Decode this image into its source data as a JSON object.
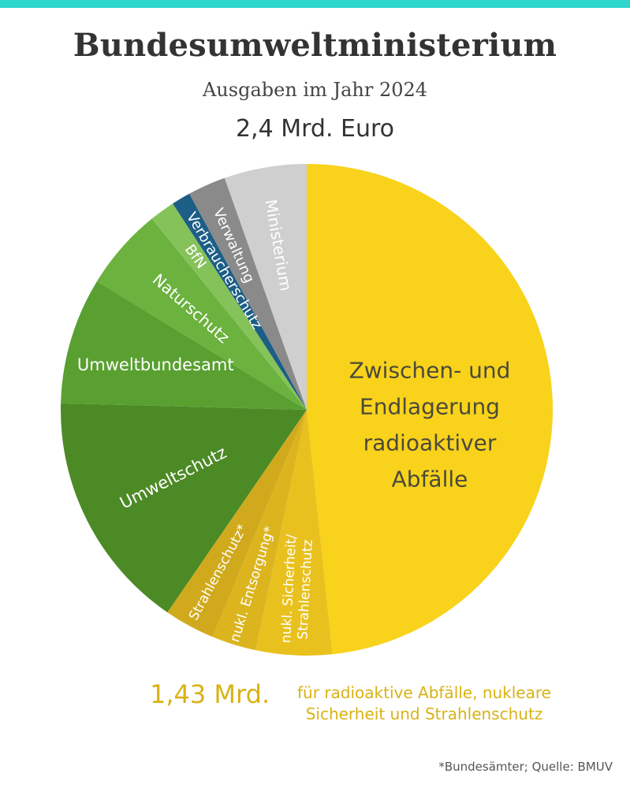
{
  "header": {
    "title": "Bundesumweltministerium",
    "subtitle": "Ausgaben im Jahr 2024",
    "total": "2,4 Mrd. Euro"
  },
  "summary": {
    "value": "1,43 Mrd.",
    "text_line1": "für radioaktive Abfälle, nukleare",
    "text_line2": "Sicherheit und Strahlenschutz"
  },
  "footnote": "*Bundesämter; Quelle: BMUV",
  "chart_data": {
    "type": "pie",
    "title": "Bundesumweltministerium",
    "subtitle": "Ausgaben im Jahr 2024",
    "total": "2,4 Mrd. Euro",
    "unit": "Mrd. Euro",
    "start_angle_deg": 0,
    "direction": "clockwise",
    "slices": [
      {
        "label": "Zwischen- und Endlagerung radioaktiver Abfälle",
        "lines": [
          "Zwischen- und",
          "Endlagerung",
          "radioaktiver",
          "Abfälle"
        ],
        "value": 1.16,
        "color": "#f9d21b",
        "text_color": "#4a4a3a"
      },
      {
        "label": "nukl. Sicherheit/ Strahlenschutz",
        "lines": [
          "nukl. Sicherheit/",
          "Strahlenschutz"
        ],
        "value": 0.12,
        "color": "#e8c11e",
        "text_color": "#ffffff"
      },
      {
        "label": "nukl. Entsorgung*",
        "lines": [
          "nukl. Entsorgung*"
        ],
        "value": 0.07,
        "color": "#dcb51e",
        "text_color": "#ffffff"
      },
      {
        "label": "Strahlenschutz*",
        "lines": [
          "Strahlenschutz*"
        ],
        "value": 0.08,
        "color": "#d0aa1c",
        "text_color": "#ffffff"
      },
      {
        "label": "Umweltschutz",
        "lines": [
          "Umweltschutz"
        ],
        "value": 0.38,
        "color": "#4c8a26",
        "text_color": "#ffffff"
      },
      {
        "label": "Umweltbundesamt",
        "lines": [
          "Umweltbundesamt"
        ],
        "value": 0.2,
        "color": "#59a030",
        "text_color": "#ffffff"
      },
      {
        "label": "Naturschutz",
        "lines": [
          "Naturschutz"
        ],
        "value": 0.13,
        "color": "#6bb23e",
        "text_color": "#ffffff"
      },
      {
        "label": "BfN",
        "lines": [
          "BfN"
        ],
        "value": 0.04,
        "color": "#86c25a",
        "text_color": "#ffffff"
      },
      {
        "label": "Verbraucherschutz",
        "lines": [
          "Verbraucherschutz"
        ],
        "value": 0.03,
        "color": "#1c5e86",
        "text_color": "#ffffff"
      },
      {
        "label": "Verwaltung",
        "lines": [
          "Verwaltung"
        ],
        "value": 0.06,
        "color": "#8a8a8a",
        "text_color": "#ffffff"
      },
      {
        "label": "Ministerium",
        "lines": [
          "Ministerium"
        ],
        "value": 0.13,
        "color": "#cfcfcf",
        "text_color": "#ffffff"
      }
    ]
  }
}
